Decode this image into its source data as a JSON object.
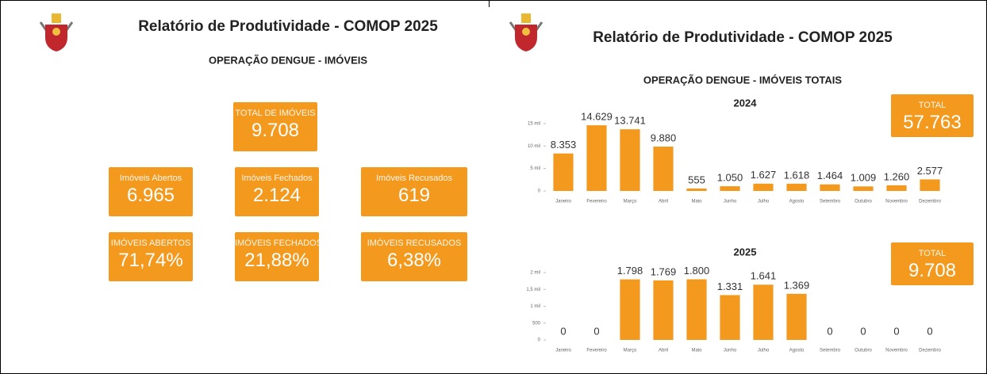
{
  "left_panel": {
    "title": "Relatório de Produtividade - COMOP 2025",
    "subtitle": "OPERAÇÃO DENGUE - IMÓVEIS",
    "cards": [
      {
        "label": "TOTAL DE IMÓVEIS",
        "value": "9.708"
      },
      {
        "label": "Imóveis Abertos",
        "value": "6.965"
      },
      {
        "label": "Imóveis Fechados",
        "value": "2.124"
      },
      {
        "label": "Imóveis Recusados",
        "value": "619"
      },
      {
        "label": "IMÓVEIS ABERTOS",
        "value": "71,74%"
      },
      {
        "label": "IMÓVEIS FECHADOS",
        "value": "21,88%"
      },
      {
        "label": "IMÓVEIS RECUSADOS",
        "value": "6,38%"
      }
    ]
  },
  "right_panel": {
    "title": "Relatório de Produtividade - COMOP 2025",
    "subtitle": "OPERAÇÃO DENGUE - IMÓVEIS TOTAIS",
    "totals": [
      {
        "label": "TOTAL",
        "value": "57.763"
      },
      {
        "label": "TOTAL",
        "value": "9.708"
      }
    ]
  },
  "chart_data": [
    {
      "type": "bar",
      "title": "2024",
      "color": "#f39a1e",
      "categories": [
        "Janeiro",
        "Fevereiro",
        "Março",
        "Abril",
        "Maio",
        "Junho",
        "Julho",
        "Agosto",
        "Setembro",
        "Outubro",
        "Novembro",
        "Dezembro"
      ],
      "values": [
        8353,
        14629,
        13741,
        9880,
        555,
        1050,
        1627,
        1618,
        1464,
        1009,
        1260,
        2577
      ],
      "value_labels": [
        "8.353",
        "14.629",
        "13.741",
        "9.880",
        "555",
        "1.050",
        "1.627",
        "1.618",
        "1.464",
        "1.009",
        "1.260",
        "2.577"
      ],
      "ylim": [
        0,
        15000
      ],
      "yticks": [
        0,
        {
          "value": 5000,
          "label": "5 mil"
        },
        {
          "value": 10000,
          "label": "10 mil"
        },
        {
          "value": 15000,
          "label": "15 mil"
        }
      ]
    },
    {
      "type": "bar",
      "title": "2025",
      "color": "#f39a1e",
      "categories": [
        "Janeiro",
        "Fevereiro",
        "Março",
        "Abril",
        "Maio",
        "Junho",
        "Julho",
        "Agosto",
        "Setembro",
        "Outubro",
        "Novembro",
        "Dezembro"
      ],
      "values": [
        0,
        0,
        1798,
        1769,
        1800,
        1331,
        1641,
        1369,
        0,
        0,
        0,
        0
      ],
      "value_labels": [
        "0",
        "0",
        "1.798",
        "1.769",
        "1.800",
        "1.331",
        "1.641",
        "1.369",
        "0",
        "0",
        "0",
        "0"
      ],
      "ylim": [
        0,
        2000
      ],
      "yticks": [
        0,
        500,
        {
          "value": 1000,
          "label": "1 mil"
        },
        {
          "value": 1500,
          "label": "1,5 mil"
        },
        {
          "value": 2000,
          "label": "2 mil"
        }
      ]
    }
  ]
}
